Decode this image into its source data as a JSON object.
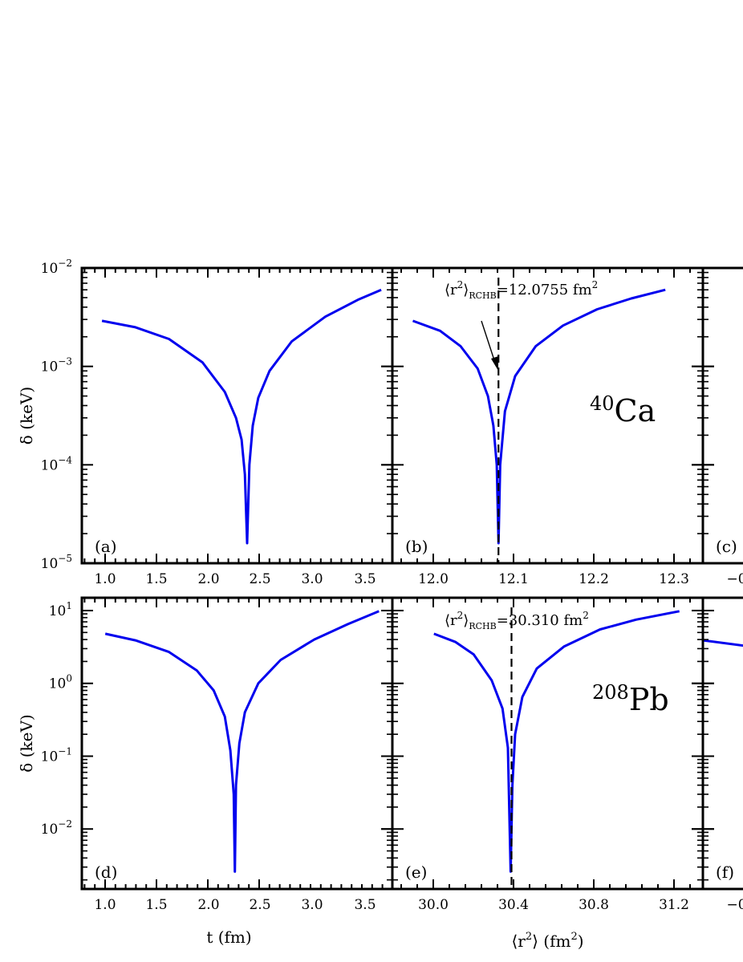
{
  "chart_data": [
    {
      "type": "line",
      "panel": "(a)",
      "xlabel": "",
      "ylabel": "δ (keV)",
      "yscale": "log",
      "ylim": [
        1e-05,
        0.01
      ],
      "xlim": [
        0.82,
        3.6
      ],
      "xticks": [
        "1.0",
        "1.5",
        "2.0",
        "2.5",
        "3.0",
        "3.5"
      ],
      "series": [
        {
          "color": "#0000ee",
          "x": [
            1.0,
            1.3,
            1.6,
            1.9,
            2.1,
            2.2,
            2.25,
            2.28,
            2.3,
            2.32,
            2.35,
            2.4,
            2.5,
            2.7,
            3.0,
            3.3,
            3.5
          ],
          "y": [
            0.0029,
            0.0025,
            0.0019,
            0.0011,
            0.00055,
            0.0003,
            0.00018,
            8e-05,
            1.6e-05,
            0.0001,
            0.00025,
            0.00048,
            0.0009,
            0.0018,
            0.0032,
            0.0048,
            0.006
          ]
        }
      ]
    },
    {
      "type": "line",
      "panel": "(b)",
      "xlabel": "",
      "yscale": "log",
      "ylim": [
        1e-05,
        0.01
      ],
      "xlim": [
        11.92,
        12.375
      ],
      "xticks": [
        "12.0",
        "12.1",
        "12.2",
        "12.3"
      ],
      "vline": 12.0755,
      "annotation": "⟨r²⟩RCHB=12.0755 fm²",
      "nucleus": "40Ca",
      "series": [
        {
          "color": "#0000ee",
          "x": [
            11.95,
            11.99,
            12.02,
            12.045,
            12.06,
            12.068,
            12.073,
            12.0755,
            12.078,
            12.085,
            12.1,
            12.13,
            12.17,
            12.22,
            12.27,
            12.32
          ],
          "y": [
            0.0029,
            0.0023,
            0.0016,
            0.00095,
            0.0005,
            0.00025,
            0.0001,
            1.6e-05,
            0.0001,
            0.00035,
            0.0008,
            0.0016,
            0.0026,
            0.0038,
            0.0049,
            0.006
          ]
        }
      ]
    },
    {
      "type": "line",
      "panel": "(c)",
      "xlabel": "",
      "yscale": "log",
      "ylim": [
        1e-05,
        0.01
      ],
      "xticks": [
        "−0"
      ],
      "series": []
    },
    {
      "type": "line",
      "panel": "(d)",
      "xlabel": "t (fm)",
      "ylabel": "δ (keV)",
      "yscale": "log",
      "ylim": [
        0.0015,
        15
      ],
      "xlim": [
        0.82,
        3.6
      ],
      "xticks": [
        "1.0",
        "1.5",
        "2.0",
        "2.5",
        "3.0",
        "3.5"
      ],
      "series": [
        {
          "color": "#0000ee",
          "x": [
            1.03,
            1.3,
            1.6,
            1.85,
            2.0,
            2.1,
            2.15,
            2.18,
            2.19,
            2.2,
            2.23,
            2.28,
            2.4,
            2.6,
            2.9,
            3.2,
            3.48
          ],
          "y": [
            4.8,
            3.9,
            2.7,
            1.5,
            0.8,
            0.35,
            0.12,
            0.03,
            0.0026,
            0.04,
            0.15,
            0.4,
            1.0,
            2.1,
            4.0,
            6.5,
            9.8
          ]
        }
      ]
    },
    {
      "type": "line",
      "panel": "(e)",
      "xlabel": "⟨r²⟩ (fm²)",
      "yscale": "log",
      "ylim": [
        0.0015,
        15
      ],
      "xlim": [
        29.65,
        31.37
      ],
      "xticks": [
        "30.0",
        "30.4",
        "30.8",
        "31.2"
      ],
      "vline": 30.31,
      "annotation": "⟨r²⟩RCHB=30.310 fm²",
      "nucleus": "208Pb",
      "series": [
        {
          "color": "#0000ee",
          "x": [
            29.88,
            30.0,
            30.1,
            30.2,
            30.26,
            30.29,
            30.305,
            30.315,
            30.33,
            30.37,
            30.45,
            30.6,
            30.8,
            31.0,
            31.24
          ],
          "y": [
            4.8,
            3.7,
            2.5,
            1.1,
            0.45,
            0.13,
            0.0026,
            0.04,
            0.2,
            0.65,
            1.6,
            3.2,
            5.5,
            7.5,
            9.8
          ]
        }
      ]
    },
    {
      "type": "line",
      "panel": "(f)",
      "xlabel": "",
      "yscale": "log",
      "ylim": [
        0.0015,
        15
      ],
      "xticks": [
        "−0"
      ],
      "series": [
        {
          "color": "#0000ee",
          "x": [
            0.0,
            1.0
          ],
          "y": [
            3.9,
            3.2
          ]
        }
      ]
    }
  ],
  "ytick_labels": {
    "top": [
      {
        "b": "10",
        "e": "−2"
      },
      {
        "b": "10",
        "e": "−3"
      },
      {
        "b": "10",
        "e": "−4"
      },
      {
        "b": "10",
        "e": "−5"
      }
    ],
    "bottom": [
      {
        "b": "10",
        "e": "1"
      },
      {
        "b": "10",
        "e": "0"
      },
      {
        "b": "10",
        "e": "−1"
      },
      {
        "b": "10",
        "e": "−2"
      }
    ]
  }
}
